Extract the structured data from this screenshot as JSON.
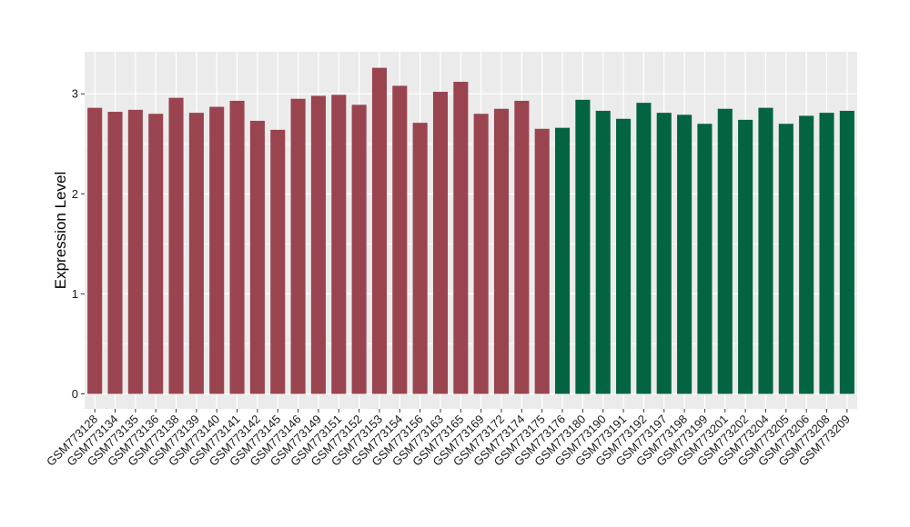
{
  "chart_data": {
    "type": "bar",
    "ylabel": "Expression Level",
    "xlabel": "",
    "ylim": [
      -0.15,
      3.42
    ],
    "yticks": [
      0,
      1,
      2,
      3
    ],
    "grid": true,
    "colors": {
      "group1": "#9a4450",
      "group2": "#036442",
      "panel": "#ebebeb",
      "gridline": "#ffffff"
    },
    "categories": [
      "GSM773128",
      "GSM773134",
      "GSM773135",
      "GSM773136",
      "GSM773138",
      "GSM773139",
      "GSM773140",
      "GSM773141",
      "GSM773142",
      "GSM773145",
      "GSM773146",
      "GSM773149",
      "GSM773151",
      "GSM773152",
      "GSM773153",
      "GSM773154",
      "GSM773156",
      "GSM773163",
      "GSM773165",
      "GSM773169",
      "GSM773172",
      "GSM773174",
      "GSM773175",
      "GSM773176",
      "GSM773180",
      "GSM773190",
      "GSM773191",
      "GSM773192",
      "GSM773197",
      "GSM773198",
      "GSM773199",
      "GSM773201",
      "GSM773202",
      "GSM773204",
      "GSM773205",
      "GSM773206",
      "GSM773208",
      "GSM773209"
    ],
    "values": [
      2.86,
      2.82,
      2.84,
      2.8,
      2.96,
      2.81,
      2.87,
      2.93,
      2.73,
      2.64,
      2.95,
      2.98,
      2.99,
      2.89,
      3.26,
      3.08,
      2.71,
      3.02,
      3.12,
      2.8,
      2.85,
      2.93,
      2.65,
      2.66,
      2.94,
      2.83,
      2.75,
      2.91,
      2.81,
      2.79,
      2.7,
      2.85,
      2.74,
      2.86,
      2.7,
      2.78,
      2.81,
      2.83
    ],
    "groups": [
      1,
      1,
      1,
      1,
      1,
      1,
      1,
      1,
      1,
      1,
      1,
      1,
      1,
      1,
      1,
      1,
      1,
      1,
      1,
      1,
      1,
      1,
      1,
      2,
      2,
      2,
      2,
      2,
      2,
      2,
      2,
      2,
      2,
      2,
      2,
      2,
      2,
      2
    ]
  }
}
